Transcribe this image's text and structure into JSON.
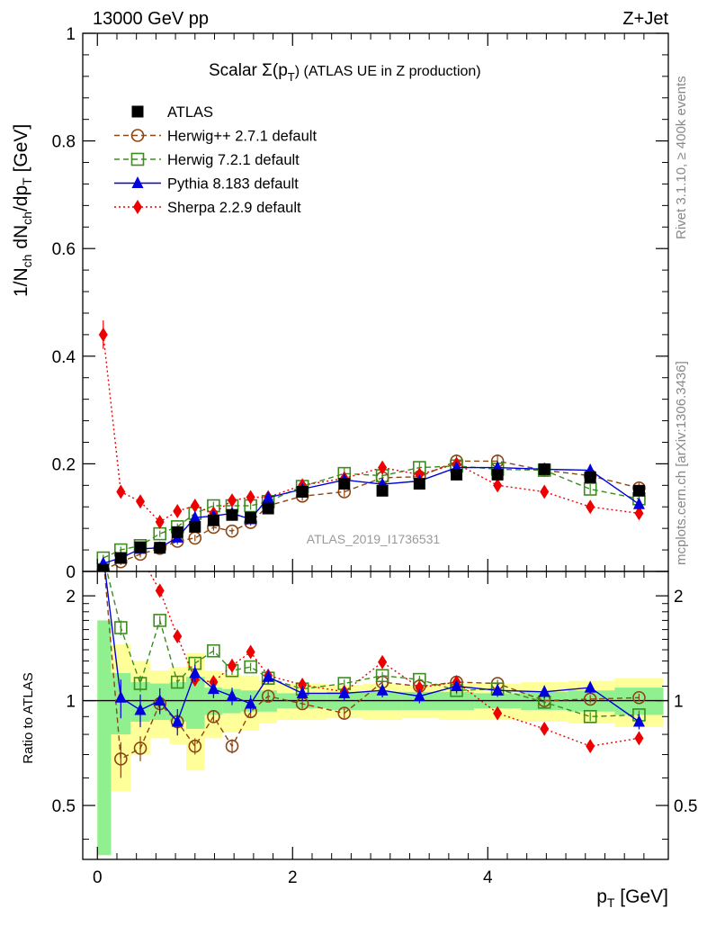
{
  "header": {
    "left": "13000 GeV pp",
    "right": "Z+Jet"
  },
  "side_labels": {
    "rivet": "Rivet 3.1.10, ≥ 400k events",
    "mcplots": "mcplots.cern.ch [arXiv:1306.3436]"
  },
  "colors": {
    "data": "#000000",
    "herwigpp": "#8B4513",
    "herwig7": "#3C8C1E",
    "pythia": "#0000DD",
    "sherpa": "#EE0000",
    "band_inner": "#90F090",
    "band_outer": "#FFFF99"
  },
  "chart_data": [
    {
      "type": "scatter",
      "panel": "main",
      "title_prefix": "Scalar Σ(p",
      "title_sub": "T",
      "title_suffix": ") (ATLAS UE in Z production)",
      "ylabel": "1/N_ch dN_ch/dp_T [GeV]",
      "watermark": "ATLAS_2019_I1736531",
      "xlim": [
        -0.15,
        5.85
      ],
      "ylim": [
        0,
        1
      ],
      "yticks": [
        0,
        0.2,
        0.4,
        0.6,
        0.8,
        1
      ],
      "ytick_labels": [
        "0",
        "0.2",
        "0.4",
        "0.6",
        "0.8",
        "1"
      ],
      "x": [
        0.06,
        0.24,
        0.44,
        0.64,
        0.82,
        1.0,
        1.19,
        1.38,
        1.57,
        1.75,
        2.1,
        2.53,
        2.92,
        3.3,
        3.68,
        4.1,
        4.58,
        5.05,
        5.55
      ],
      "series": [
        {
          "key": "data",
          "name": "ATLAS",
          "marker": "square-filled",
          "style": "none",
          "values": [
            0.003,
            0.025,
            0.045,
            0.044,
            0.073,
            0.083,
            0.095,
            0.105,
            0.1,
            0.117,
            0.148,
            0.163,
            0.15,
            0.163,
            0.18,
            0.18,
            0.19,
            0.175,
            0.15
          ]
        },
        {
          "key": "herwigpp",
          "name": "Herwig++ 2.7.1 default",
          "marker": "circle-open",
          "style": "dashed",
          "values": [
            0.002,
            0.018,
            0.032,
            0.043,
            0.056,
            0.062,
            0.082,
            0.075,
            0.091,
            0.122,
            0.14,
            0.148,
            0.174,
            0.176,
            0.205,
            0.205,
            0.188,
            0.178,
            0.155
          ]
        },
        {
          "key": "herwig7",
          "name": "Herwig 7.2.1 default",
          "marker": "square-open",
          "style": "dashed",
          "values": [
            0.025,
            0.04,
            0.048,
            0.07,
            0.083,
            0.108,
            0.122,
            0.122,
            0.122,
            0.13,
            0.158,
            0.182,
            0.178,
            0.193,
            0.196,
            0.19,
            0.188,
            0.153,
            0.135
          ]
        },
        {
          "key": "pythia",
          "name": "Pythia 8.183 default",
          "marker": "triangle-filled",
          "style": "solid",
          "values": [
            0.015,
            0.025,
            0.042,
            0.044,
            0.063,
            0.1,
            0.103,
            0.108,
            0.097,
            0.137,
            0.153,
            0.17,
            0.162,
            0.168,
            0.193,
            0.193,
            0.19,
            0.188,
            0.125
          ]
        },
        {
          "key": "sherpa",
          "name": "Sherpa 2.2.9 default",
          "marker": "diamond-filled",
          "style": "dotted",
          "values": [
            0.44,
            0.148,
            0.13,
            0.092,
            0.112,
            0.122,
            0.108,
            0.132,
            0.138,
            0.138,
            0.16,
            0.173,
            0.193,
            0.18,
            0.2,
            0.16,
            0.148,
            0.12,
            0.108
          ]
        }
      ],
      "legend": [
        "ATLAS",
        "Herwig++ 2.7.1 default",
        "Herwig 7.2.1 default",
        "Pythia 8.183 default",
        "Sherpa 2.2.9 default"
      ]
    },
    {
      "type": "scatter",
      "panel": "ratio",
      "ylabel": "Ratio to ATLAS",
      "xlabel": "p_T [GeV]",
      "xlim": [
        -0.15,
        5.85
      ],
      "ylim": [
        0.35,
        2.35
      ],
      "yticks_left": [
        0.5,
        1,
        2
      ],
      "ytick_labels_left": [
        "0.5",
        "1",
        "2"
      ],
      "yticks_right": [
        0.5,
        1,
        2
      ],
      "ytick_labels_right": [
        "0.5",
        "1",
        "2"
      ],
      "xticks": [
        0,
        2,
        4
      ],
      "xtick_labels": [
        "0",
        "2",
        "4"
      ],
      "x": [
        0.06,
        0.24,
        0.44,
        0.64,
        0.82,
        1.0,
        1.19,
        1.38,
        1.57,
        1.75,
        2.1,
        2.53,
        2.92,
        3.3,
        3.68,
        4.1,
        4.58,
        5.05,
        5.55
      ],
      "bins": [
        0.0,
        0.14,
        0.34,
        0.54,
        0.74,
        0.91,
        1.1,
        1.28,
        1.47,
        1.66,
        1.84,
        2.35,
        2.72,
        3.12,
        3.5,
        3.86,
        4.34,
        4.82,
        5.3,
        5.8
      ],
      "band_inner_halfwidth": [
        0.7,
        0.2,
        0.13,
        0.12,
        0.13,
        0.17,
        0.09,
        0.08,
        0.07,
        0.07,
        0.05,
        0.06,
        0.06,
        0.06,
        0.06,
        0.05,
        0.06,
        0.07,
        0.09
      ],
      "band_outer_halfwidth": [
        0.7,
        0.45,
        0.3,
        0.22,
        0.25,
        0.37,
        0.22,
        0.19,
        0.18,
        0.14,
        0.12,
        0.11,
        0.12,
        0.11,
        0.12,
        0.12,
        0.13,
        0.14,
        0.16
      ],
      "series": [
        {
          "key": "herwigpp",
          "values": [
            null,
            0.68,
            0.73,
            0.98,
            0.87,
            0.74,
            0.9,
            0.74,
            0.93,
            1.03,
            0.98,
            0.92,
            1.13,
            1.1,
            1.13,
            1.12,
            1.0,
            1.01,
            1.02
          ]
        },
        {
          "key": "herwig7",
          "values": [
            null,
            1.62,
            1.12,
            1.7,
            1.13,
            1.28,
            1.39,
            1.22,
            1.25,
            1.16,
            1.08,
            1.12,
            1.18,
            1.15,
            1.07,
            1.08,
            0.99,
            0.9,
            0.91
          ]
        },
        {
          "key": "pythia",
          "values": [
            null,
            1.02,
            0.94,
            1.0,
            0.87,
            1.2,
            1.08,
            1.03,
            0.98,
            1.17,
            1.05,
            1.05,
            1.07,
            1.03,
            1.1,
            1.07,
            1.06,
            1.09,
            0.87
          ]
        },
        {
          "key": "sherpa",
          "values": [
            null,
            null,
            null,
            2.07,
            1.53,
            1.15,
            1.13,
            1.26,
            1.38,
            1.18,
            1.11,
            1.06,
            1.29,
            1.09,
            1.13,
            0.92,
            0.83,
            0.74,
            0.78
          ]
        }
      ]
    }
  ]
}
